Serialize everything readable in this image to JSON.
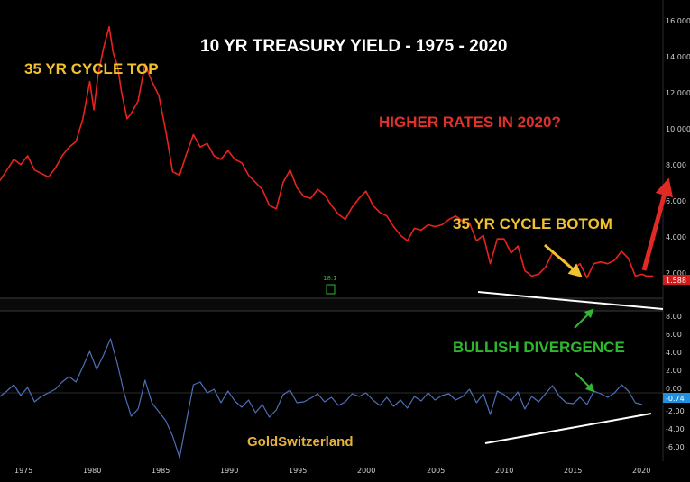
{
  "chart_data": [
    {
      "type": "line",
      "title": "10 YR TREASURY YIELD - 1975 - 2020",
      "annotations": [
        {
          "text": "35 YR CYCLE TOP",
          "color": "#f2c12e"
        },
        {
          "text": "HIGHER RATES IN 2020?",
          "color": "#e0312b"
        },
        {
          "text": "35 YR CYCLE BOTOM",
          "color": "#f2c12e"
        }
      ],
      "y_ticks": [
        "16.000",
        "14.000",
        "12.000",
        "10.000",
        "8.000",
        "6.000",
        "4.000",
        "2.000"
      ],
      "last_value_label": "1.588",
      "ylim": [
        0.5,
        16.5
      ],
      "xlim": [
        1973.5,
        2021.5
      ],
      "series": [
        {
          "color": "#e8231f",
          "x": [
            1973.5,
            1974.0,
            1974.5,
            1975.0,
            1975.5,
            1976.0,
            1976.5,
            1977.0,
            1977.5,
            1978.0,
            1978.5,
            1979.0,
            1979.5,
            1980.0,
            1980.3,
            1980.6,
            1981.0,
            1981.4,
            1981.7,
            1982.0,
            1982.3,
            1982.7,
            1983.0,
            1983.5,
            1984.0,
            1984.5,
            1985.0,
            1985.5,
            1986.0,
            1986.5,
            1987.0,
            1987.5,
            1988.0,
            1988.5,
            1989.0,
            1989.5,
            1990.0,
            1990.5,
            1991.0,
            1991.5,
            1992.0,
            1992.5,
            1993.0,
            1993.5,
            1994.0,
            1994.5,
            1995.0,
            1995.5,
            1996.0,
            1996.5,
            1997.0,
            1997.5,
            1998.0,
            1998.5,
            1999.0,
            1999.5,
            2000.0,
            2000.5,
            2001.0,
            2001.5,
            2002.0,
            2002.5,
            2003.0,
            2003.5,
            2004.0,
            2004.5,
            2005.0,
            2005.5,
            2006.0,
            2006.5,
            2007.0,
            2007.5,
            2008.0,
            2008.5,
            2009.0,
            2009.5,
            2010.0,
            2010.5,
            2011.0,
            2011.5,
            2012.0,
            2012.5,
            2013.0,
            2013.5,
            2014.0,
            2014.5,
            2015.0,
            2015.5,
            2016.0,
            2016.5,
            2017.0,
            2017.5,
            2018.0,
            2018.5,
            2019.0,
            2019.5,
            2020.0,
            2020.3,
            2020.8
          ],
          "y": [
            7.0,
            7.6,
            8.2,
            7.9,
            8.4,
            7.6,
            7.4,
            7.2,
            7.7,
            8.4,
            8.9,
            9.2,
            10.5,
            12.6,
            11.0,
            13.0,
            14.5,
            15.7,
            14.2,
            13.5,
            12.0,
            10.5,
            10.8,
            11.5,
            13.6,
            12.6,
            11.8,
            9.8,
            7.5,
            7.3,
            8.5,
            9.6,
            8.9,
            9.1,
            8.4,
            8.2,
            8.7,
            8.2,
            8.0,
            7.3,
            6.9,
            6.5,
            5.6,
            5.4,
            6.9,
            7.6,
            6.6,
            6.1,
            6.0,
            6.5,
            6.2,
            5.6,
            5.1,
            4.8,
            5.5,
            6.0,
            6.4,
            5.6,
            5.2,
            5.0,
            4.4,
            3.9,
            3.6,
            4.3,
            4.2,
            4.5,
            4.4,
            4.5,
            4.8,
            5.0,
            4.7,
            4.6,
            3.6,
            3.9,
            2.3,
            3.7,
            3.7,
            2.9,
            3.3,
            1.9,
            1.6,
            1.7,
            2.1,
            2.9,
            2.7,
            2.4,
            2.0,
            2.3,
            1.5,
            2.3,
            2.4,
            2.3,
            2.5,
            3.0,
            2.6,
            1.6,
            1.7,
            1.6,
            1.6
          ]
        }
      ]
    },
    {
      "type": "line",
      "annotations": [
        {
          "text": "BULLISH DIVERGENCE",
          "color": "#2fb82f"
        },
        {
          "text": "GoldSwitzerland",
          "color": "#e6b33a"
        }
      ],
      "y_ticks": [
        "8.00",
        "6.00",
        "4.00",
        "2.00",
        "0.00",
        "-2.00",
        "-4.00",
        "-6.00"
      ],
      "last_value_label": "-0.74",
      "ylim": [
        -7,
        9
      ],
      "xlim": [
        1973.5,
        2021.5
      ],
      "x_ticks": [
        "1975",
        "1980",
        "1985",
        "1990",
        "1995",
        "2000",
        "2005",
        "2010",
        "2015",
        "2020"
      ],
      "series": [
        {
          "color": "#4f6fb8",
          "x": [
            1973.5,
            1974.0,
            1974.5,
            1975.0,
            1975.5,
            1976.0,
            1976.5,
            1977.0,
            1977.5,
            1978.0,
            1978.5,
            1979.0,
            1979.5,
            1980.0,
            1980.5,
            1981.0,
            1981.5,
            1982.0,
            1982.5,
            1983.0,
            1983.5,
            1984.0,
            1984.5,
            1985.0,
            1985.5,
            1986.0,
            1986.5,
            1987.0,
            1987.5,
            1988.0,
            1988.5,
            1989.0,
            1989.5,
            1990.0,
            1990.5,
            1991.0,
            1991.5,
            1992.0,
            1992.5,
            1993.0,
            1993.5,
            1994.0,
            1994.5,
            1995.0,
            1995.5,
            1996.0,
            1996.5,
            1997.0,
            1997.5,
            1998.0,
            1998.5,
            1999.0,
            1999.5,
            2000.0,
            2000.5,
            2001.0,
            2001.5,
            2002.0,
            2002.5,
            2003.0,
            2003.5,
            2004.0,
            2004.5,
            2005.0,
            2005.5,
            2006.0,
            2006.5,
            2007.0,
            2007.5,
            2008.0,
            2008.5,
            2009.0,
            2009.5,
            2010.0,
            2010.5,
            2011.0,
            2011.5,
            2012.0,
            2012.5,
            2013.0,
            2013.5,
            2014.0,
            2014.5,
            2015.0,
            2015.5,
            2016.0,
            2016.5,
            2017.0,
            2017.5,
            2018.0,
            2018.5,
            2019.0,
            2019.5,
            2020.0
          ],
          "y": [
            0.2,
            0.8,
            1.5,
            0.3,
            1.2,
            -0.4,
            0.2,
            0.6,
            1.0,
            1.8,
            2.4,
            1.8,
            3.5,
            5.2,
            3.2,
            4.8,
            6.6,
            3.8,
            0.5,
            -2.0,
            -1.2,
            2.0,
            -0.5,
            -1.5,
            -2.5,
            -4.2,
            -6.6,
            -2.5,
            1.5,
            1.8,
            0.6,
            1.0,
            -0.5,
            0.8,
            -0.3,
            -1.0,
            -0.2,
            -1.6,
            -0.7,
            -2.1,
            -1.3,
            0.4,
            0.9,
            -0.5,
            -0.4,
            0.0,
            0.5,
            -0.4,
            0.1,
            -0.8,
            -0.4,
            0.5,
            0.2,
            0.6,
            -0.2,
            -0.8,
            0.1,
            -0.9,
            -0.2,
            -1.1,
            0.2,
            -0.3,
            0.6,
            -0.2,
            0.3,
            0.5,
            -0.2,
            0.2,
            1.0,
            -0.5,
            0.5,
            -1.8,
            0.8,
            0.4,
            -0.3,
            0.7,
            -1.2,
            0.2,
            -0.4,
            0.5,
            1.4,
            0.2,
            -0.5,
            -0.6,
            0.1,
            -0.7,
            0.8,
            0.5,
            0.1,
            0.6,
            1.5,
            0.8,
            -0.5,
            -0.7
          ]
        }
      ]
    }
  ],
  "marker_label": "18:1",
  "colors": {
    "arrow_red": "#e02a23",
    "arrow_yellow": "#f2c12e",
    "arrow_green": "#2fb82f",
    "trendline": "#ffffff",
    "badge_red": "#d11c1c",
    "badge_blue": "#1f8fe0"
  }
}
